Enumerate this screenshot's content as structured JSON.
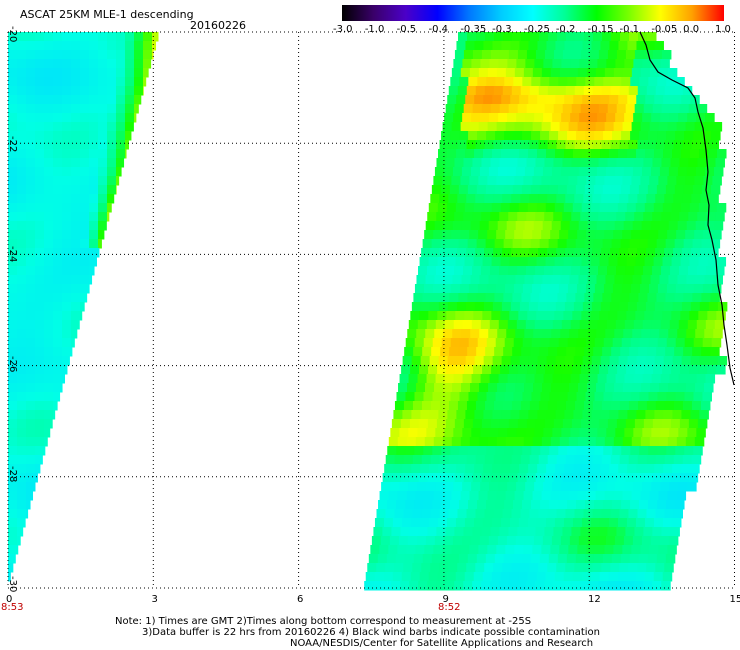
{
  "title": "ASCAT 25KM MLE-1 descending",
  "date": "20160226",
  "colorbar": {
    "tick_labels": [
      "-3.0",
      "-1.0",
      "-0.5",
      "-0.4",
      "-0.35",
      "-0.3",
      "-0.25",
      "-0.2",
      "-0.15",
      "-0.1",
      "-0.05",
      "0.0",
      "1.0"
    ],
    "colors": [
      "#000000",
      "#3a006a",
      "#4b00c8",
      "#0000ff",
      "#0078ff",
      "#00ccff",
      "#00ffff",
      "#00ff96",
      "#00ff00",
      "#78ff00",
      "#ffff00",
      "#ffa000",
      "#ff0000"
    ]
  },
  "axes": {
    "lat_labels": [
      "-20",
      "-22",
      "-24",
      "-26",
      "-28",
      "-30"
    ],
    "lon_labels": [
      "0",
      "3",
      "6",
      "9",
      "12",
      "15"
    ],
    "time_labels": [
      "8:53",
      "8:52"
    ]
  },
  "notes": [
    "Note: 1) Times are GMT 2)Times along bottom correspond to measurement at -25S",
    "3)Data buffer is 22 hrs from 20160226 4) Black wind barbs indicate possible contamination",
    "NOAA/NESDIS/Center for Satellite Applications and Research"
  ]
}
